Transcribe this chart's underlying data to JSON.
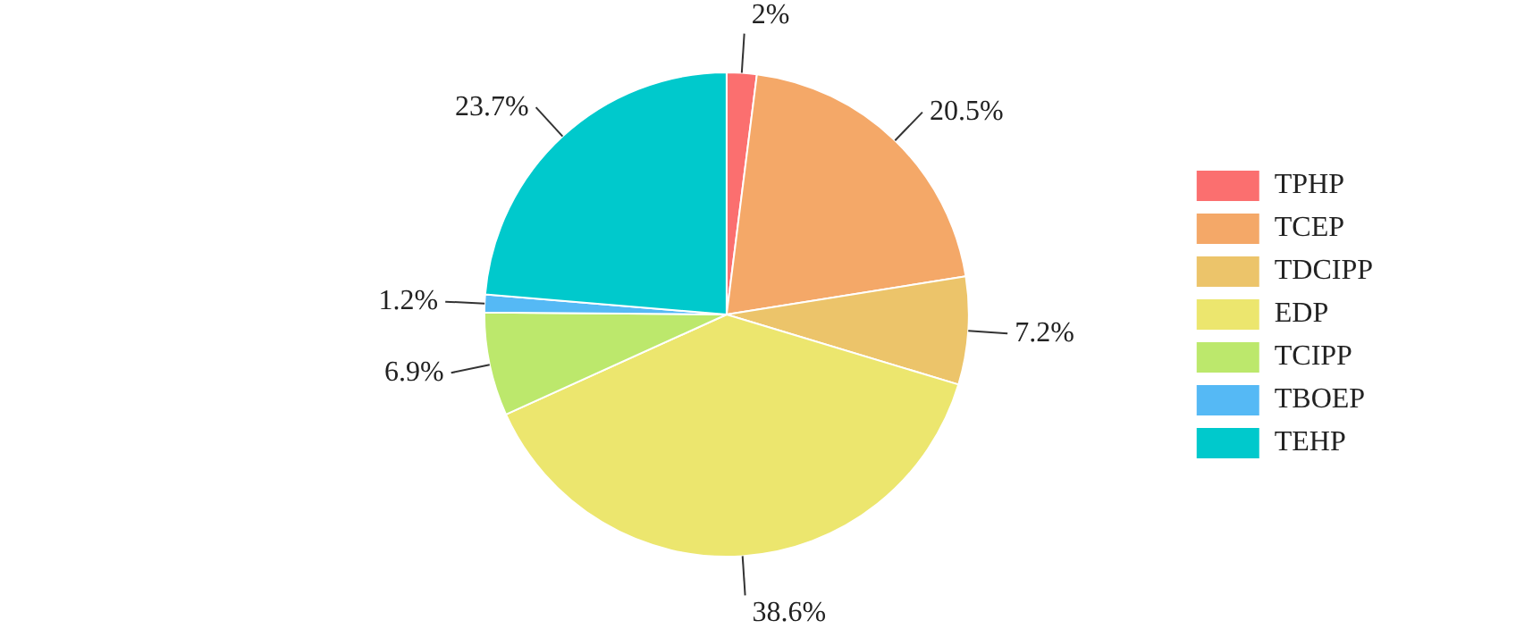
{
  "chart_data": {
    "type": "pie",
    "categories": [
      "TPHP",
      "TCEP",
      "TDCIPP",
      "EDP",
      "TCIPP",
      "TBOEP",
      "TEHP"
    ],
    "values": [
      2,
      20.5,
      7.2,
      38.6,
      6.9,
      1.2,
      23.7
    ],
    "colors": [
      "#fb6f6f",
      "#f4a868",
      "#ecc46a",
      "#ece66e",
      "#bce86c",
      "#55b9f5",
      "#00c9cc"
    ],
    "value_labels": [
      "2%",
      "20.5%",
      "7.2%",
      "38.6%",
      "6.9%",
      "1.2%",
      "23.7%"
    ],
    "legend": "right"
  }
}
